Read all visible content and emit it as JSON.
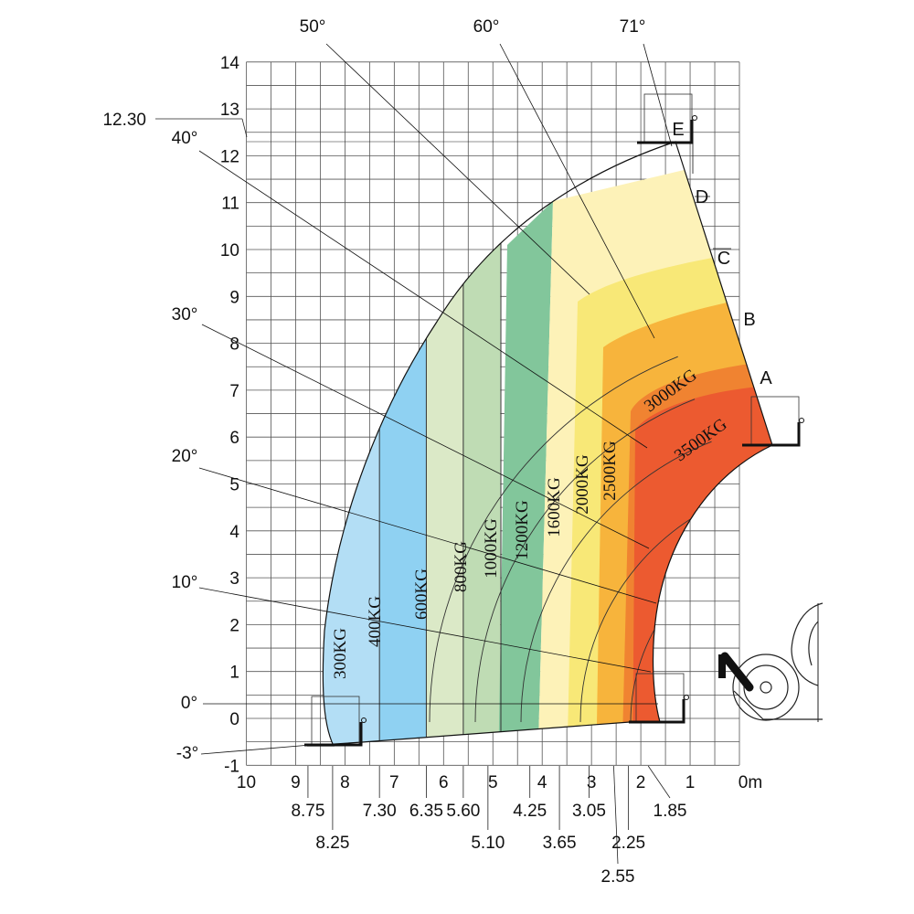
{
  "chart_data": {
    "type": "area",
    "title": "",
    "xlabel": "",
    "ylabel": "",
    "x_unit": "m",
    "xlim": [
      10,
      0
    ],
    "ylim": [
      -1,
      14
    ],
    "grid": true,
    "x_ticks": [
      "10",
      "9",
      "8",
      "7",
      "6",
      "5",
      "4",
      "3",
      "2",
      "1",
      "0m"
    ],
    "y_ticks": [
      "14",
      "13",
      "12",
      "11",
      "10",
      "9",
      "8",
      "7",
      "6",
      "5",
      "4",
      "3",
      "2",
      "1",
      "0",
      "-1"
    ],
    "zone_boundaries_x": [
      {
        "x": 8.75,
        "label": "8.75"
      },
      {
        "x": 8.25,
        "label": "8.25"
      },
      {
        "x": 7.3,
        "label": "7.30"
      },
      {
        "x": 6.35,
        "label": "6.35"
      },
      {
        "x": 5.6,
        "label": "5.60"
      },
      {
        "x": 5.1,
        "label": "5.10"
      },
      {
        "x": 4.25,
        "label": "4.25"
      },
      {
        "x": 3.65,
        "label": "3.65"
      },
      {
        "x": 3.05,
        "label": "3.05"
      },
      {
        "x": 2.55,
        "label": "2.55"
      },
      {
        "x": 2.25,
        "label": "2.25"
      },
      {
        "x": 1.85,
        "label": "1.85"
      }
    ],
    "max_height": {
      "y": 12.3,
      "label": "12.30"
    },
    "boom_angles": [
      "71°",
      "60°",
      "50°",
      "40°",
      "30°",
      "20°",
      "10°",
      "0°",
      "-3°"
    ],
    "extension_stages": [
      "A",
      "B",
      "C",
      "D",
      "E"
    ],
    "series": [
      {
        "name": "300KG",
        "x_min": 8.75,
        "x_max": 9.05,
        "color": "#cfe9f9"
      },
      {
        "name": "400KG",
        "x_min": 7.3,
        "x_max": 8.75,
        "color": "#b3def5"
      },
      {
        "name": "600KG",
        "x_min": 6.35,
        "x_max": 7.3,
        "color": "#8fd1f2"
      },
      {
        "name": "800KG",
        "x_min": 5.6,
        "x_max": 6.35,
        "color": "#dbe9c7"
      },
      {
        "name": "1000KG",
        "x_min": 4.85,
        "x_max": 5.6,
        "color": "#bfdcb4"
      },
      {
        "name": "1200KG",
        "x_min": 4.05,
        "x_max": 4.85,
        "color": "#82c69b"
      },
      {
        "name": "1600KG",
        "x_min": 3.65,
        "x_max": 4.25,
        "color": "#fdf2b8"
      },
      {
        "name": "2000KG",
        "x_min": 3.05,
        "x_max": 3.65,
        "color": "#f8e877"
      },
      {
        "name": "2500KG",
        "x_min": 2.55,
        "x_max": 3.05,
        "color": "#f7b43c"
      },
      {
        "name": "3000KG",
        "x_min": 2.25,
        "x_max": 2.55,
        "color": "#f08331"
      },
      {
        "name": "3500KG",
        "x_min": 1.85,
        "x_max": 2.25,
        "color": "#ec5a30"
      }
    ]
  }
}
